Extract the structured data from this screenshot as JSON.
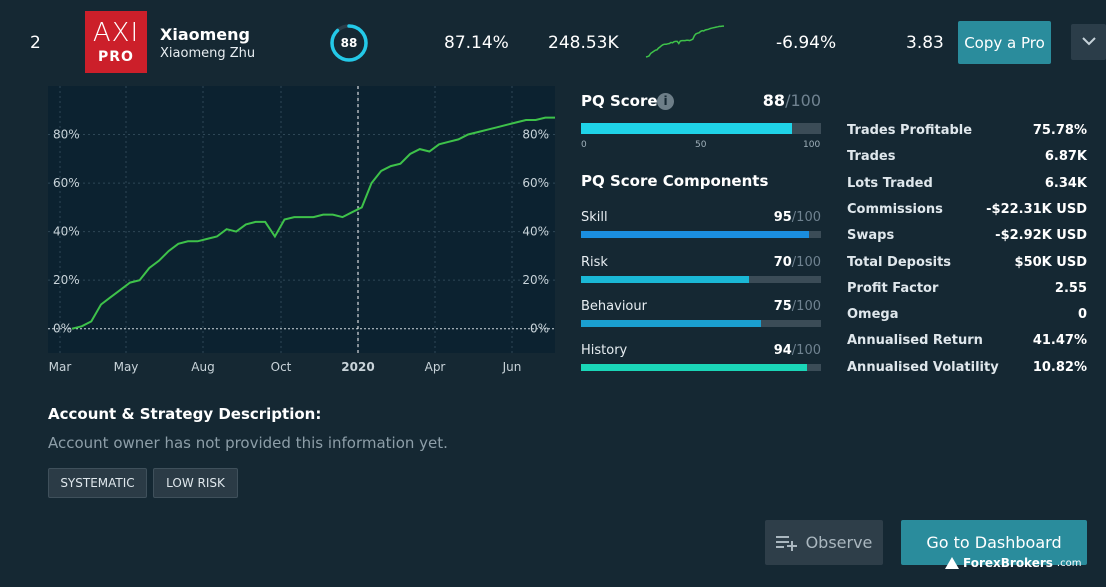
{
  "header": {
    "rank": "2",
    "logo_top": "AXI",
    "logo_bottom": "PRO",
    "username": "Xiaomeng",
    "full_name": "Xiaomeng Zhu",
    "score": "88",
    "gain": "87.14%",
    "followers": "248.53K",
    "drawdown": "-6.94%",
    "ratio": "3.83",
    "copy_label": "Copy a Pro"
  },
  "chart_data": {
    "type": "line",
    "x_tick_labels": [
      "Mar",
      "May",
      "Aug",
      "Oct",
      "2020",
      "Apr",
      "Jun"
    ],
    "y_tick_labels": [
      "0%",
      "20%",
      "40%",
      "60%",
      "80%"
    ],
    "ylim": [
      -10,
      100
    ],
    "series": [
      {
        "x": [
          0,
          2,
          4,
          6,
          8,
          10,
          12,
          14,
          16,
          18,
          20,
          22,
          24,
          26,
          28,
          30,
          32,
          34,
          36,
          38,
          40,
          42,
          44,
          46,
          48,
          50,
          52,
          54,
          56,
          58,
          60,
          62,
          64,
          66,
          68,
          70,
          72,
          74,
          76,
          78,
          80,
          82,
          84,
          86,
          88,
          90,
          92,
          94,
          96,
          98,
          100
        ],
        "y": [
          0,
          1,
          3,
          10,
          13,
          16,
          19,
          20,
          25,
          28,
          32,
          35,
          36,
          36,
          37,
          38,
          41,
          40,
          43,
          44,
          44,
          38,
          45,
          46,
          46,
          46,
          47,
          47,
          46,
          48,
          50,
          60,
          65,
          67,
          68,
          72,
          74,
          73,
          76,
          77,
          78,
          80,
          81,
          82,
          83,
          84,
          85,
          86,
          86,
          87,
          87
        ]
      }
    ]
  },
  "pq": {
    "title": "PQ Score",
    "value": "88",
    "max": "/100",
    "fill": 0.88,
    "ticks": [
      "0",
      "50",
      "100"
    ],
    "components_title": "PQ Score Components",
    "components": [
      {
        "label": "Skill",
        "value": "95",
        "max": "/100",
        "fill": 0.95,
        "color": "#1a8ee0"
      },
      {
        "label": "Risk",
        "value": "70",
        "max": "/100",
        "fill": 0.7,
        "color": "#1ab8d6"
      },
      {
        "label": "Behaviour",
        "value": "75",
        "max": "/100",
        "fill": 0.75,
        "color": "#1a9fd0"
      },
      {
        "label": "History",
        "value": "94",
        "max": "/100",
        "fill": 0.94,
        "color": "#1ad6b8"
      }
    ]
  },
  "stats": [
    {
      "label": "Trades Profitable",
      "value": "75.78%"
    },
    {
      "label": "Trades",
      "value": "6.87K"
    },
    {
      "label": "Lots Traded",
      "value": "6.34K"
    },
    {
      "label": "Commissions",
      "value": "-$22.31K USD"
    },
    {
      "label": "Swaps",
      "value": "-$2.92K USD"
    },
    {
      "label": "Total Deposits",
      "value": "$50K USD"
    },
    {
      "label": "Profit Factor",
      "value": "2.55"
    },
    {
      "label": "Omega",
      "value": "0"
    },
    {
      "label": "Annualised Return",
      "value": "41.47%"
    },
    {
      "label": "Annualised Volatility",
      "value": "10.82%"
    }
  ],
  "description": {
    "title": "Account & Strategy Description:",
    "text": "Account owner has not provided this information yet.",
    "tags": [
      "SYSTEMATIC",
      "LOW RISK"
    ]
  },
  "actions": {
    "observe_label": "Observe",
    "dashboard_label": "Go to Dashboard"
  },
  "watermark": {
    "brand": "ForexBrokers",
    "suffix": ".com"
  },
  "colors": {
    "accent": "#2a8c9c",
    "ring": "#23c9e8",
    "line": "#3ec24a",
    "pq_bar": "#1fd3e8"
  }
}
